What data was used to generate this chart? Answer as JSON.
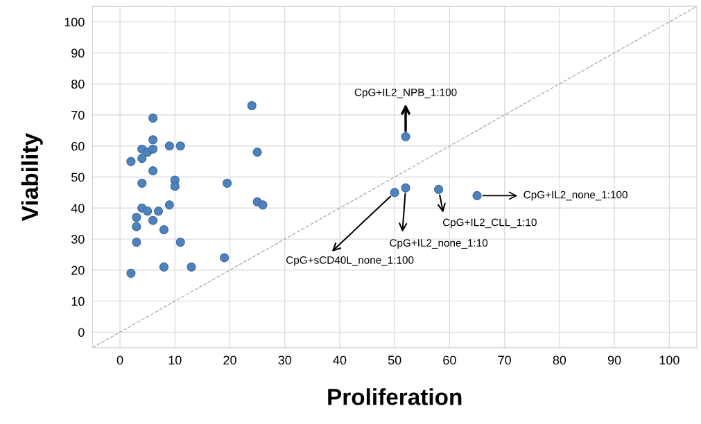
{
  "chart_data": {
    "type": "scatter",
    "xlabel": "Proliferation",
    "ylabel": "Viability",
    "xlim": [
      -5,
      105
    ],
    "ylim": [
      -5,
      105
    ],
    "xticks": [
      0,
      10,
      20,
      30,
      40,
      50,
      60,
      70,
      80,
      90,
      100
    ],
    "yticks": [
      0,
      10,
      20,
      30,
      40,
      50,
      60,
      70,
      80,
      90,
      100
    ],
    "grid": true,
    "legend": false,
    "series": [
      {
        "marker": "circle",
        "color": "#4f81bd",
        "x": [
          24,
          6,
          6,
          4,
          5,
          6,
          9,
          11,
          4,
          2,
          25,
          6,
          4,
          10,
          10,
          19.5,
          4,
          5,
          7,
          9,
          25,
          26,
          3,
          6,
          3,
          8,
          3,
          11,
          19,
          8,
          13,
          2,
          52,
          50,
          52,
          58,
          65
        ],
        "values": [
          73,
          69,
          62,
          59,
          58,
          59,
          60,
          60,
          56,
          55,
          58,
          52,
          48,
          49,
          47,
          48,
          40,
          39,
          39,
          41,
          42,
          41,
          37,
          36,
          34,
          33,
          29,
          29,
          24,
          21,
          21,
          19,
          63,
          45,
          46.5,
          46,
          44
        ]
      },
      {
        "type": "line",
        "color": "#b0b0b0",
        "line_style": "dashed",
        "x": [
          -5,
          105
        ],
        "values": [
          -5,
          105
        ]
      }
    ],
    "annotations": [
      {
        "text": "CpG+IL2_NPB_1:100",
        "x": 52,
        "y": 63
      },
      {
        "text": "CpG+IL2_none_1:100",
        "x": 65,
        "y": 44
      },
      {
        "text": "CpG+IL2_CLL_1:10",
        "x": 58,
        "y": 46
      },
      {
        "text": "CpG+IL2_none_1:10",
        "x": 52,
        "y": 46.5
      },
      {
        "text": "CpG+sCD40L_none_1:100",
        "x": 50,
        "y": 45
      }
    ]
  }
}
